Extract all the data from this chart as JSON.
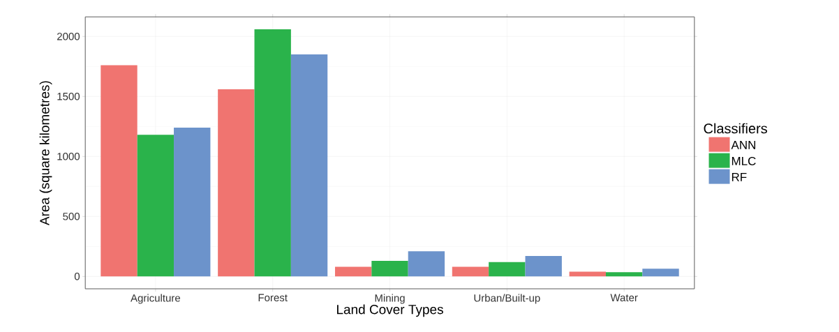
{
  "chart_data": {
    "type": "bar",
    "xlabel": "Land Cover Types",
    "ylabel": "Area (square kilometres)",
    "legend_title": "Classifiers",
    "categories": [
      "Agriculture",
      "Forest",
      "Mining",
      "Urban/Built-up",
      "Water"
    ],
    "series": [
      {
        "name": "ANN",
        "color": "#f07470",
        "values": [
          1760,
          1560,
          80,
          80,
          40
        ]
      },
      {
        "name": "MLC",
        "color": "#2ab34b",
        "values": [
          1180,
          2060,
          130,
          120,
          35
        ]
      },
      {
        "name": "RF",
        "color": "#6c93cb",
        "values": [
          1240,
          1850,
          210,
          170,
          65
        ]
      }
    ],
    "ylim": [
      -103,
      2163
    ],
    "yticks": [
      0,
      500,
      1000,
      1500,
      2000
    ],
    "grid": true,
    "legend": "right"
  }
}
